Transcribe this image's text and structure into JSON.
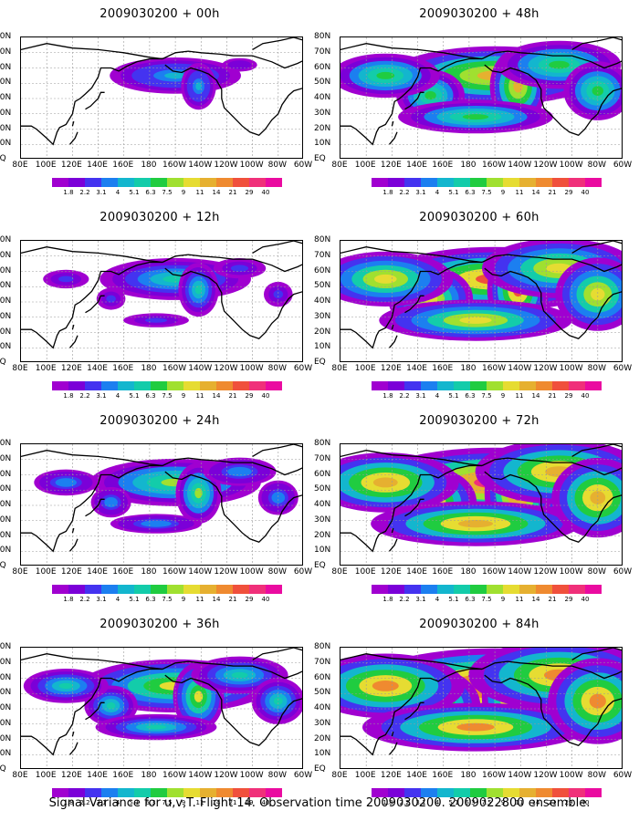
{
  "panels": [
    {
      "title": "2009030200 + 00h",
      "level": 0
    },
    {
      "title": "2009030200 + 48h",
      "level": 4
    },
    {
      "title": "2009030200 + 12h",
      "level": 1
    },
    {
      "title": "2009030200 + 60h",
      "level": 5
    },
    {
      "title": "2009030200 + 24h",
      "level": 2
    },
    {
      "title": "2009030200 + 72h",
      "level": 6
    },
    {
      "title": "2009030200 + 36h",
      "level": 3
    },
    {
      "title": "2009030200 + 84h",
      "level": 7
    }
  ],
  "lat_labels": [
    "80N",
    "70N",
    "60N",
    "50N",
    "40N",
    "30N",
    "20N",
    "10N",
    "EQ"
  ],
  "lon_labels": [
    "80E",
    "100E",
    "120E",
    "140E",
    "160E",
    "180",
    "160W",
    "140W",
    "120W",
    "100W",
    "80W",
    "60W"
  ],
  "colorbar": {
    "labels": [
      "1.8",
      "2.2",
      "3.1",
      "4",
      "5.1",
      "6.3",
      "7.5",
      "9",
      "11",
      "14",
      "21",
      "29",
      "40"
    ],
    "colors": [
      "#a000d0",
      "#7b00d8",
      "#4433f0",
      "#1c7ff0",
      "#13b6ce",
      "#13ccaa",
      "#20cc40",
      "#a0e030",
      "#e6dc32",
      "#e6b030",
      "#ef8a30",
      "#f0503c",
      "#f0307a",
      "#ea0ba0"
    ]
  },
  "caption": "Signal Variance for u,v,T. Flight 14. Observation time 2009030200. 2009022800 ensemble."
}
